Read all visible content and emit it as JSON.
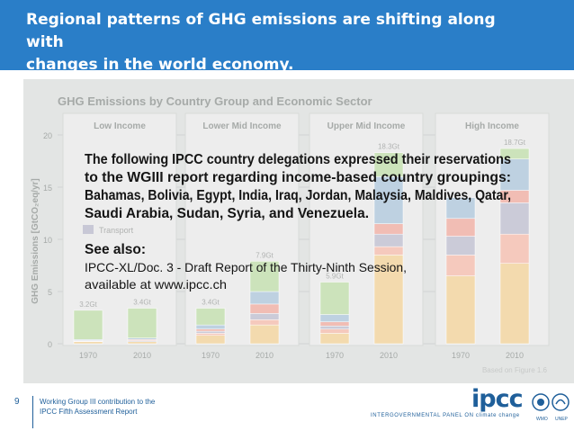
{
  "slide": {
    "title_line1": "Regional patterns of GHG emissions are shifting along with",
    "title_line2": "changes in the world economy.",
    "page_number": "9",
    "footer_line1": "Working Group III contribution to the",
    "footer_line2": "IPCC Fifth Assessment Report",
    "source_note": "Based on Figure 1.6"
  },
  "logo": {
    "wordmark": "ipcc",
    "tagline": "INTERGOVERNMENTAL PANEL ON climate change",
    "seal_labels": [
      "WMO",
      "UNEP"
    ]
  },
  "overlay": {
    "lines": [
      "The following IPCC country delegations expressed their reservations",
      "to the WGIII report regarding income-based country groupings:",
      "Bahamas, Bolivia, Egypt, India, Iraq, Jordan, Malaysia, Maldives, Qatar,",
      "Saudi Arabia, Sudan, Syria, and Venezuela."
    ],
    "see_also": "See also:",
    "ref_line1": "IPCC-XL/Doc. 3 - Draft Report of the Thirty-Ninth Session,",
    "ref_line2": "available at www.ipcc.ch"
  },
  "chart_data": {
    "type": "bar",
    "title": "GHG Emissions by Country Group and Economic Sector",
    "ylabel": "GHG Emissions [GtCO₂eq/yr]",
    "ylim": [
      0,
      20
    ],
    "yticks": [
      0,
      5,
      10,
      15,
      20
    ],
    "legend_visible": [
      "Transport"
    ],
    "stacked": true,
    "colors": {
      "energy": "#f4d9a8",
      "afolu": "#f6c6b8",
      "transport": "#c8c8d6",
      "buildings": "#f2b8ae",
      "industry": "#b9cfe0",
      "other": "#c9e2b6"
    },
    "groups": [
      {
        "name": "Low Income",
        "bars": [
          {
            "year": "1970",
            "total": 3.2,
            "label": "3.2Gt",
            "segments": [
              0.2,
              0,
              0.05,
              0.05,
              0.1,
              2.8
            ]
          },
          {
            "year": "2010",
            "total": 3.4,
            "label": "3.4Gt",
            "segments": [
              0.2,
              0,
              0.1,
              0.1,
              0.15,
              2.85
            ]
          }
        ]
      },
      {
        "name": "Lower Mid Income",
        "bars": [
          {
            "year": "1970",
            "total": 3.4,
            "label": "3.4Gt",
            "segments": [
              0.8,
              0.2,
              0.2,
              0.2,
              0.4,
              1.6
            ]
          },
          {
            "year": "2010",
            "total": 7.9,
            "label": "7.9Gt",
            "segments": [
              1.8,
              0.5,
              0.6,
              0.9,
              1.2,
              2.9
            ]
          }
        ]
      },
      {
        "name": "Upper Mid Income",
        "bars": [
          {
            "year": "1970",
            "total": 5.9,
            "label": "5.9Gt",
            "segments": [
              1.0,
              0.4,
              0.3,
              0.4,
              0.7,
              3.1
            ]
          },
          {
            "year": "2010",
            "total": 18.3,
            "label": "18.3Gt",
            "segments": [
              8.5,
              0.8,
              1.2,
              1.0,
              4.5,
              2.3
            ]
          }
        ]
      },
      {
        "name": "High Income",
        "bars": [
          {
            "year": "1970",
            "total": 14.0,
            "label": "",
            "segments": [
              6.5,
              2.0,
              1.8,
              1.7,
              2.0,
              0
            ]
          },
          {
            "year": "2010",
            "total": 18.7,
            "label": "18.7Gt",
            "segments": [
              7.7,
              2.8,
              3.0,
              1.2,
              3.0,
              1.0
            ]
          }
        ]
      }
    ]
  }
}
